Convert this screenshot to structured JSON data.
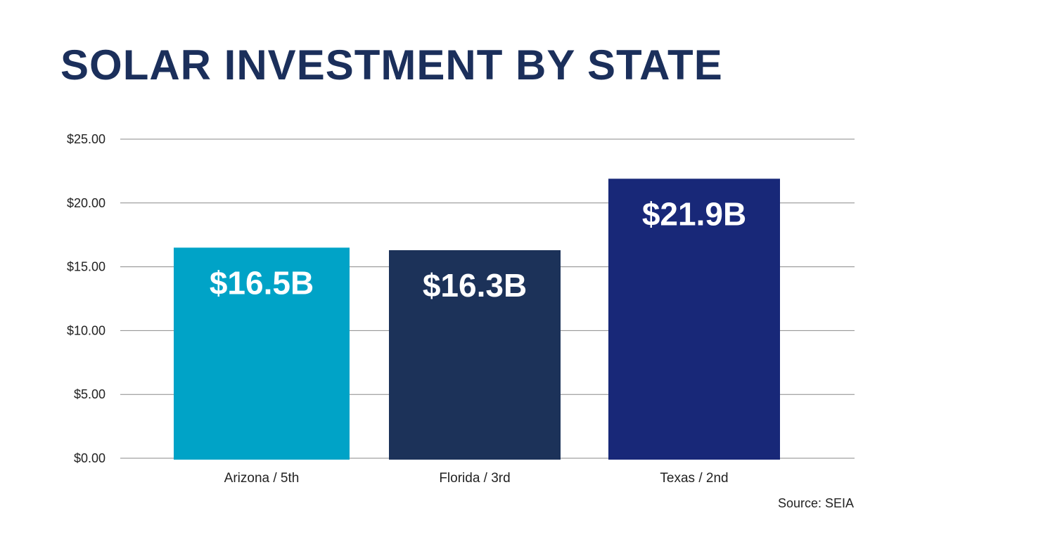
{
  "chart_data": {
    "type": "bar",
    "title": "SOLAR INVESTMENT BY STATE",
    "categories": [
      "Arizona / 5th",
      "Florida / 3rd",
      "Texas / 2nd"
    ],
    "values": [
      16.5,
      16.3,
      21.9
    ],
    "data_labels": [
      "$16.5B",
      "$16.3B",
      "$21.9B"
    ],
    "colors": [
      "#00a3c7",
      "#1c3259",
      "#182878"
    ],
    "yticks": [
      "$0.00",
      "$5.00",
      "$10.00",
      "$15.00",
      "$20.00",
      "$25.00"
    ],
    "ylim": [
      0,
      25
    ],
    "grid": true,
    "xlabel": "",
    "ylabel": "",
    "source": "Source: SEIA"
  }
}
